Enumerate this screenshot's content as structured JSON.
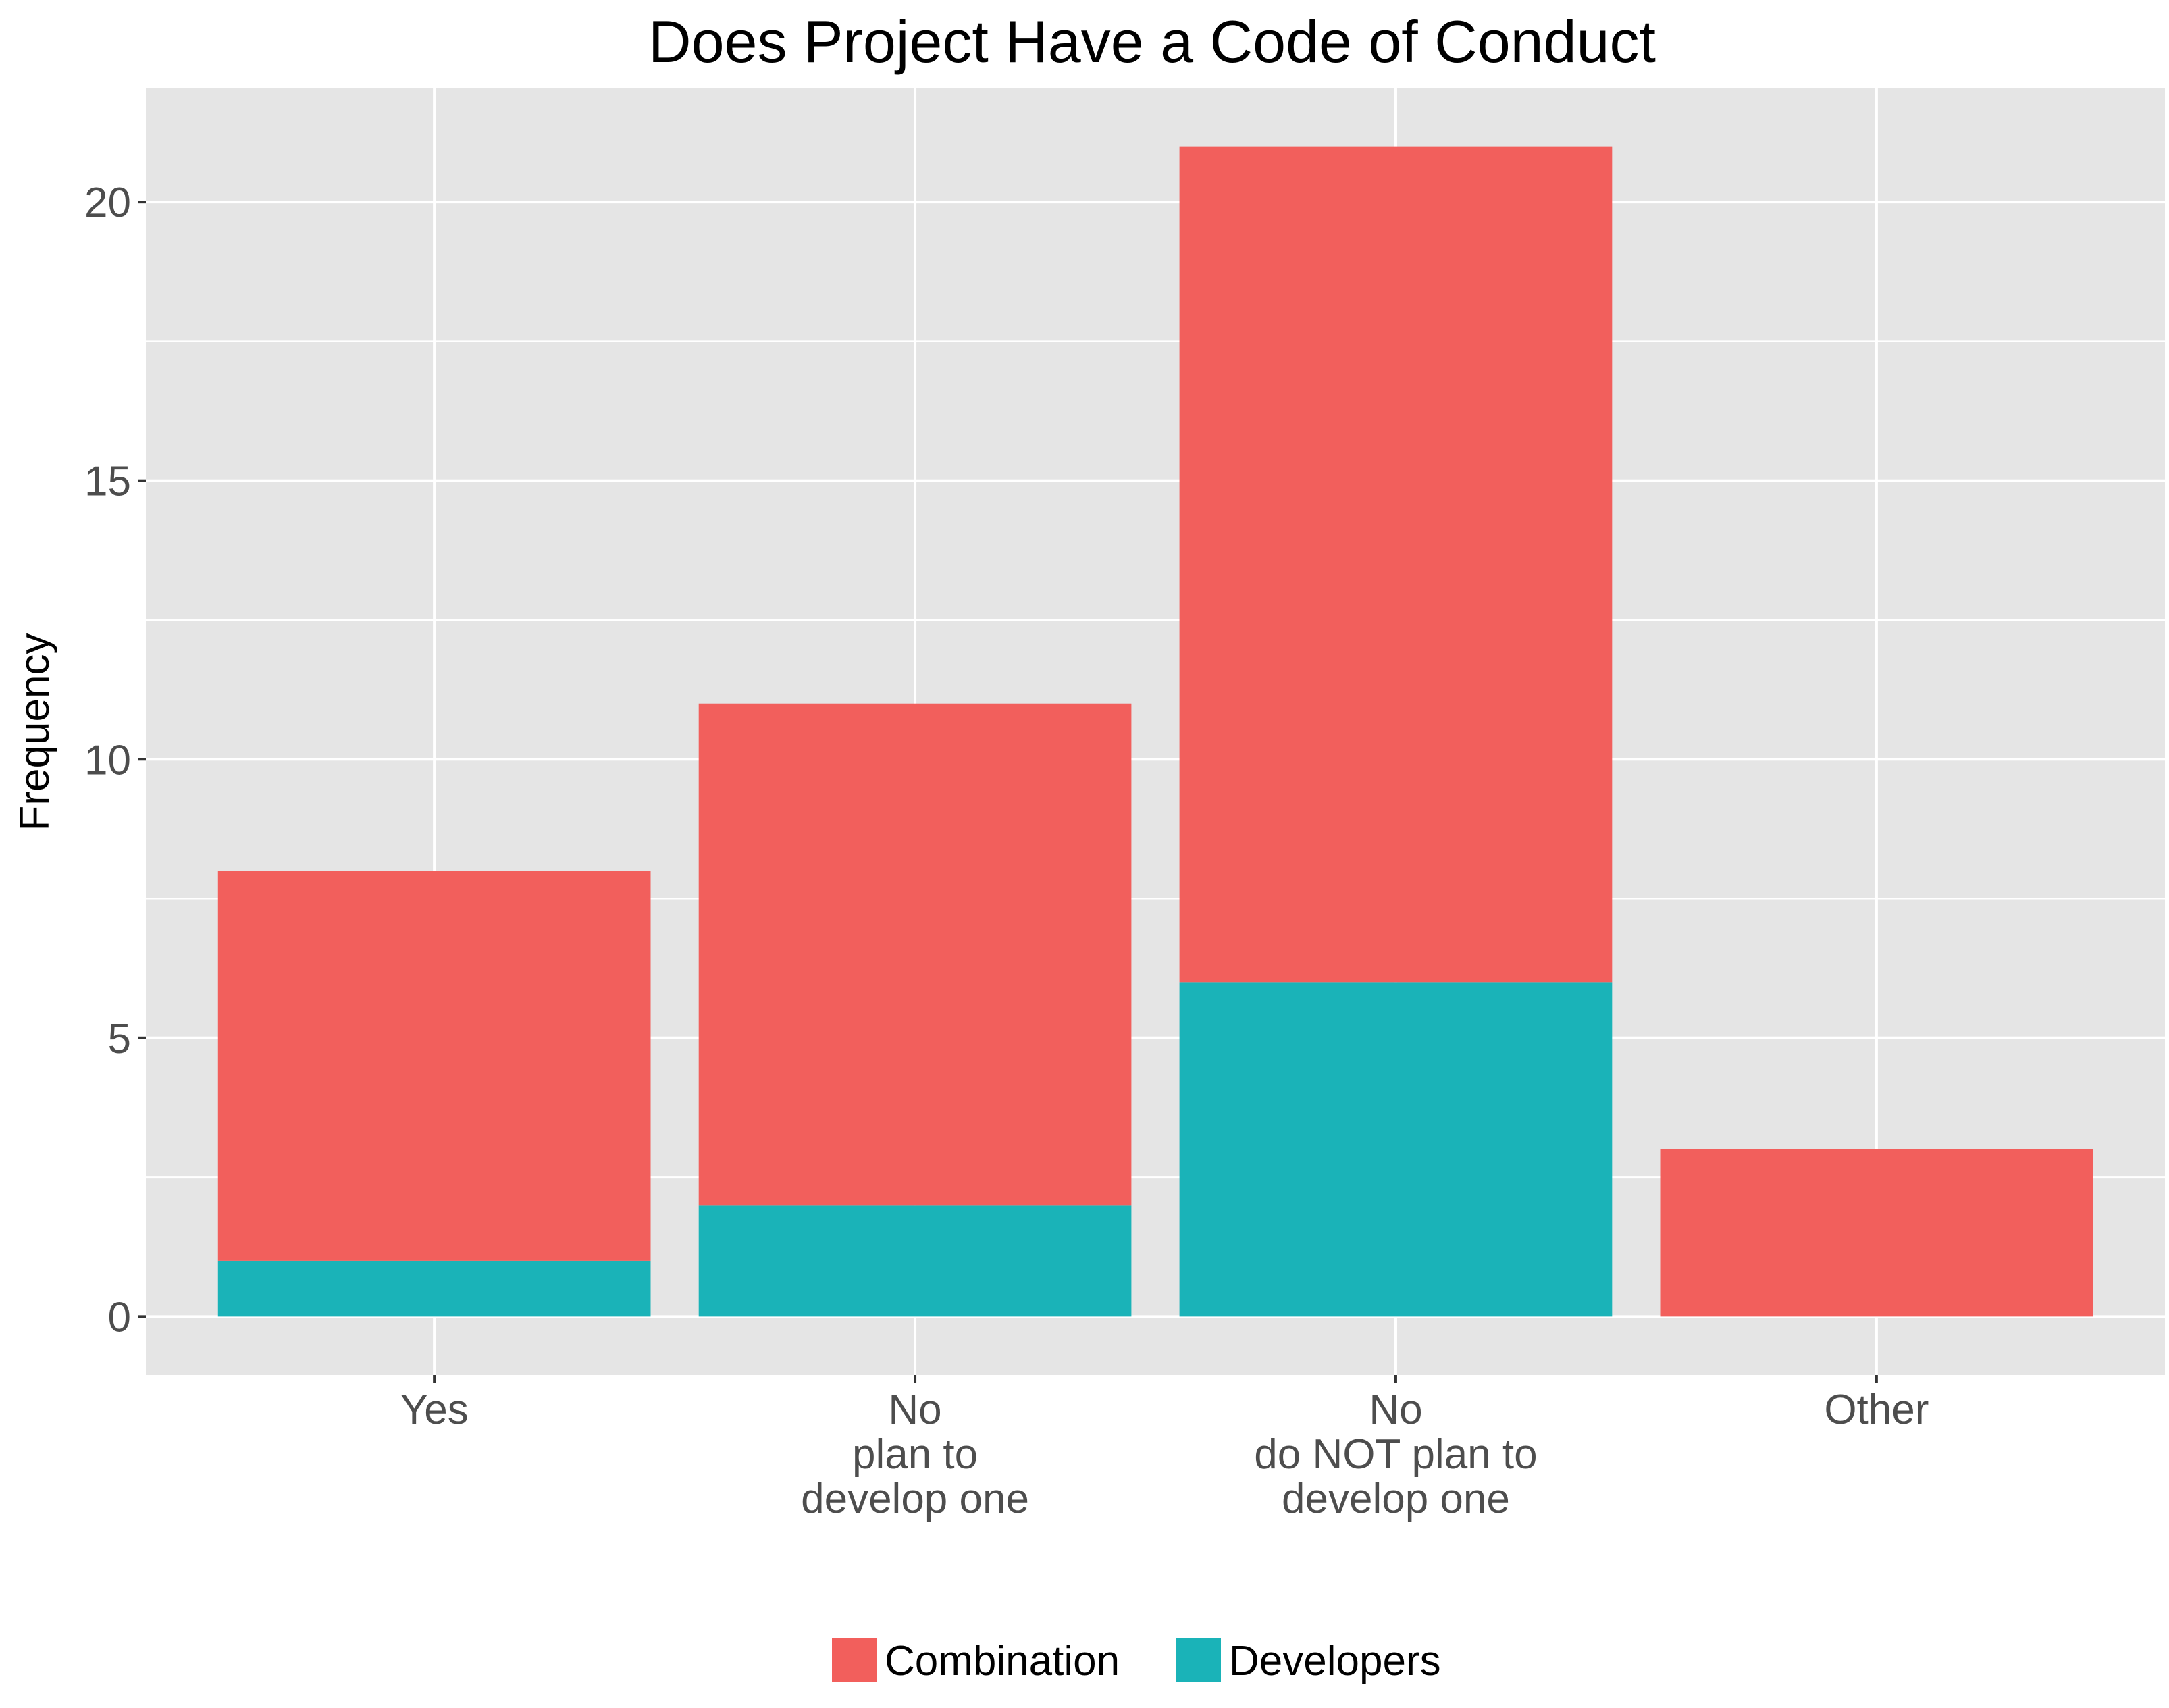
{
  "chart_data": {
    "type": "bar",
    "stacked": true,
    "title": "Does Project Have a Code of Conduct",
    "xlabel": "",
    "ylabel": "Frequency",
    "categories": [
      [
        "Yes"
      ],
      [
        "No",
        "plan to",
        "develop one"
      ],
      [
        "No",
        "do NOT plan to",
        "develop one"
      ],
      [
        "Other"
      ]
    ],
    "series": [
      {
        "name": "Combination",
        "color": "#F25F5C",
        "values": [
          7,
          9,
          15,
          3
        ]
      },
      {
        "name": "Developers",
        "color": "#1AB3B8",
        "values": [
          1,
          2,
          6,
          0
        ]
      }
    ],
    "stack_order_bottom_to_top": [
      "Developers",
      "Combination"
    ],
    "ylim": [
      -1.05,
      22.05
    ],
    "yticks": [
      0,
      5,
      10,
      15,
      20
    ],
    "ytick_labels": [
      "0",
      "5",
      "10",
      "15",
      "20"
    ],
    "grid": true,
    "panel_background": "#E5E5E5",
    "legend_position": "bottom"
  }
}
